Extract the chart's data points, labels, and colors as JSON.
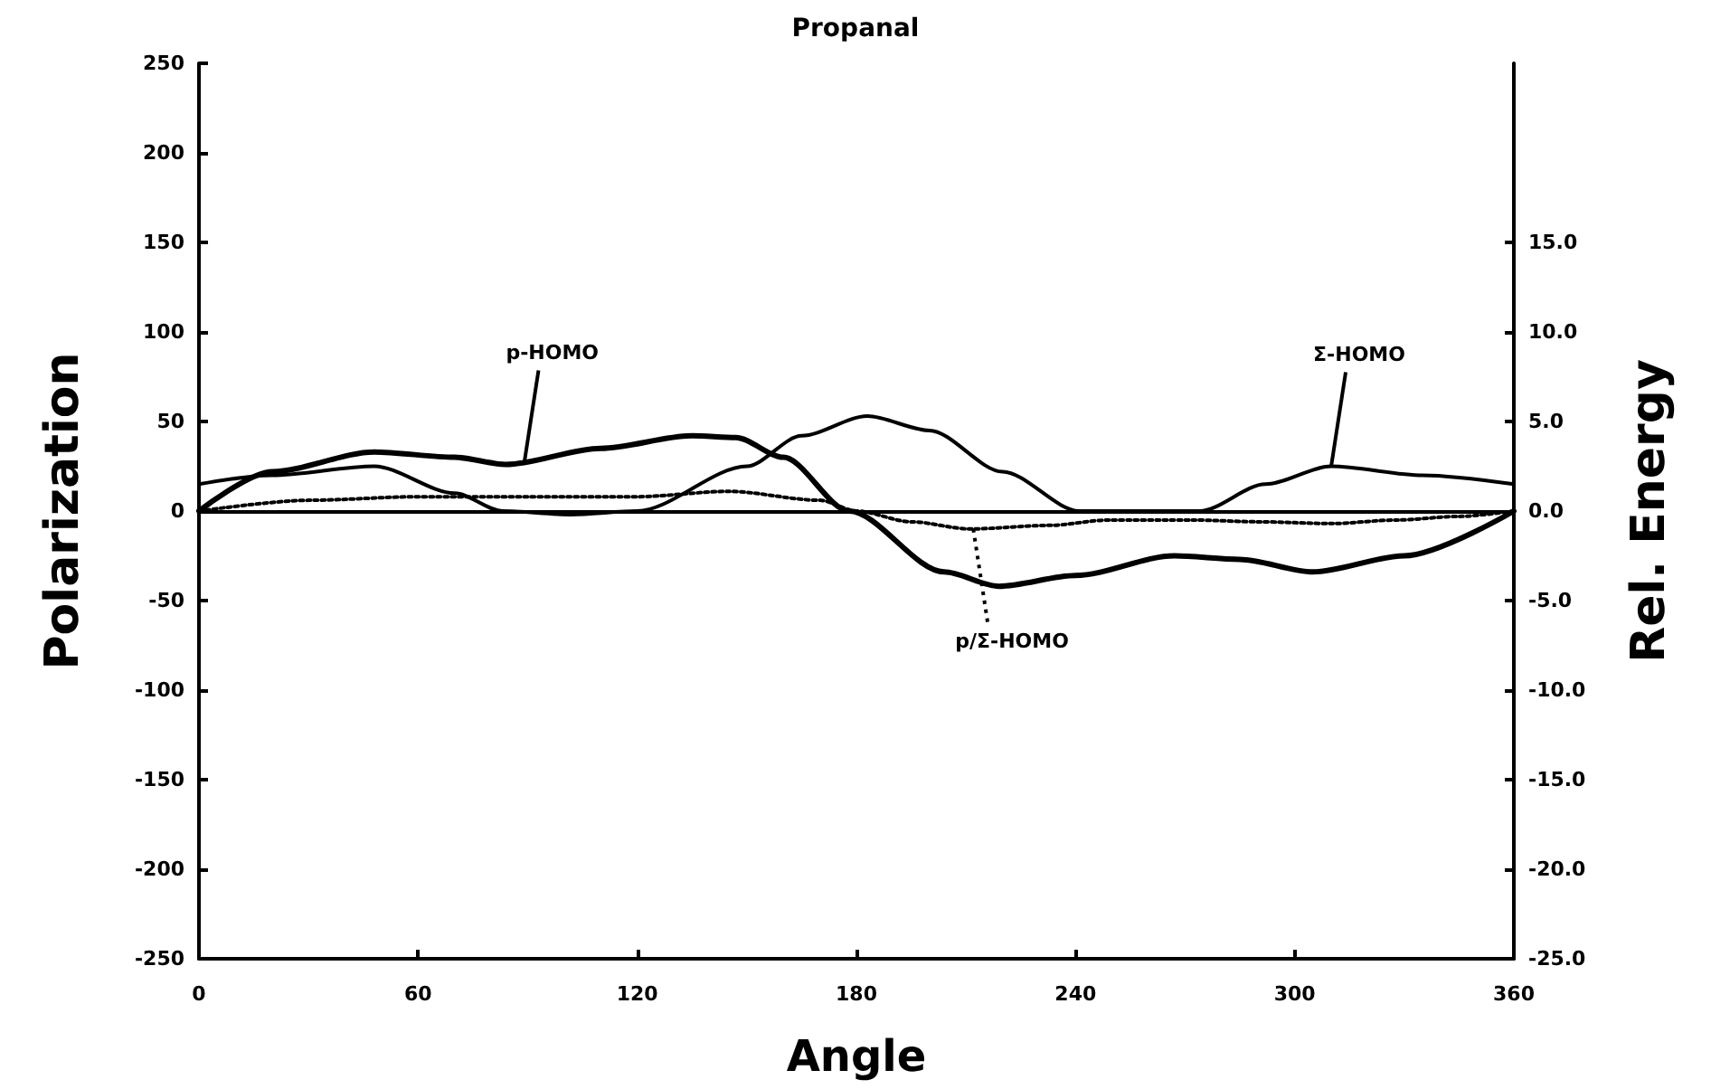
{
  "chart_data": {
    "type": "line",
    "title": "Propanal",
    "xlabel": "Angle",
    "ylabel": "Polarization",
    "y2label": "Rel. Energy",
    "xlim": [
      0,
      360
    ],
    "xticks": [
      0,
      60,
      120,
      180,
      240,
      300,
      360
    ],
    "ylim": [
      -250,
      250
    ],
    "yticks": [
      -250,
      -200,
      -150,
      -100,
      -50,
      0,
      50,
      100,
      150,
      200,
      250
    ],
    "y2lim": [
      -25,
      25
    ],
    "y2ticks": [
      {
        "value": -25,
        "label": "-25.0"
      },
      {
        "value": -20,
        "label": "-20.0"
      },
      {
        "value": -15,
        "label": "-15.0"
      },
      {
        "value": -10,
        "label": "-10.0"
      },
      {
        "value": -5,
        "label": "-5.0"
      },
      {
        "value": 0,
        "label": "0.0"
      },
      {
        "value": 5,
        "label": "5.0"
      },
      {
        "value": 10,
        "label": "10.0"
      },
      {
        "value": 15,
        "label": "15.0"
      }
    ],
    "grid": false,
    "marker": "none",
    "ref_lines": [
      {
        "axis": "y",
        "value": 0
      }
    ],
    "series": [
      {
        "color": "#000000",
        "line_style": "solid",
        "x": [
          0,
          20,
          48,
          70,
          84,
          110,
          135,
          147,
          160,
          178,
          204,
          219,
          240,
          267,
          285,
          305,
          330,
          360
        ],
        "values": [
          0,
          22,
          33,
          30,
          26,
          35,
          42,
          41,
          30,
          0,
          -34,
          -42,
          -36,
          -25,
          -27,
          -34,
          -25,
          0
        ]
      },
      {
        "color": "#000000",
        "line_style": "solid",
        "x": [
          0,
          20,
          48,
          70,
          83,
          102,
          120,
          150,
          165,
          183,
          200,
          220,
          241,
          258,
          274,
          292,
          310,
          335,
          360
        ],
        "values": [
          15,
          20,
          25,
          10,
          0,
          -2,
          0,
          25,
          42,
          53,
          45,
          22,
          0,
          0,
          0,
          15,
          25,
          20,
          15
        ]
      },
      {
        "color": "#000000",
        "line_style": "dotted",
        "x": [
          0,
          30,
          60,
          90,
          120,
          145,
          170,
          180,
          195,
          211,
          233,
          249,
          272,
          290,
          310,
          328,
          345,
          360
        ],
        "values": [
          0,
          6,
          8,
          8,
          8,
          11,
          6,
          0,
          -6,
          -10,
          -8,
          -5,
          -5,
          -6,
          -7,
          -5,
          -3,
          0
        ]
      }
    ],
    "annotations": [
      {
        "text": "p-HOMO",
        "x": 89,
        "y": 26
      },
      {
        "text": "Σ-HOMO",
        "x": 310,
        "y": 25
      },
      {
        "text": "p/Σ-HOMO",
        "x": 212,
        "y": -10
      }
    ]
  }
}
